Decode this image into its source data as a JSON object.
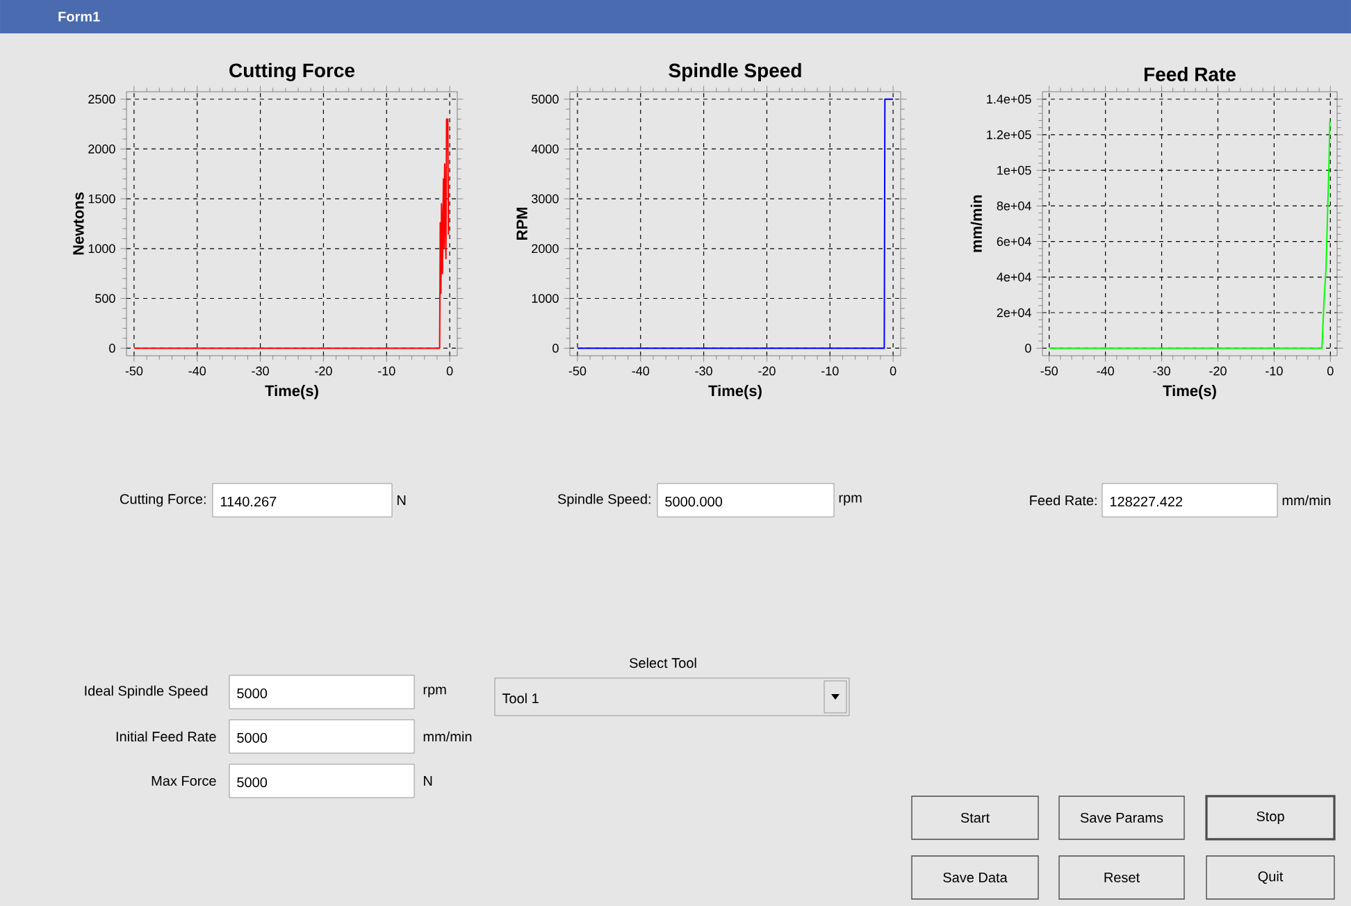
{
  "chart_data": [
    {
      "type": "line",
      "title": "Cutting Force",
      "xlabel": "Time(s)",
      "ylabel": "Newtons",
      "color": "#ff0000",
      "grid": true,
      "x": [
        -50,
        -1.6,
        -1.55,
        -1.5,
        -1.4,
        -1.3,
        -1.15,
        -1.0,
        -0.9,
        -0.8,
        -0.6,
        -0.5,
        -0.3,
        -0.2
      ],
      "values": [
        0,
        0,
        500,
        1260,
        550,
        1450,
        750,
        1700,
        1000,
        1850,
        900,
        2300,
        2300,
        1140
      ],
      "xlim": [
        -50,
        0
      ],
      "ylim": [
        0,
        2500
      ],
      "xticks": [
        -50,
        -40,
        -30,
        -20,
        -10,
        0
      ],
      "yticks": [
        0,
        500,
        1000,
        1500,
        2000,
        2500
      ]
    },
    {
      "type": "line",
      "title": "Spindle Speed",
      "xlabel": "Time(s)",
      "ylabel": "RPM",
      "color": "#0000ff",
      "grid": true,
      "x": [
        -50,
        -1.4,
        -1.3,
        0
      ],
      "values": [
        0,
        0,
        5000,
        5000
      ],
      "xlim": [
        -50,
        0
      ],
      "ylim": [
        0,
        5000
      ],
      "xticks": [
        -50,
        -40,
        -30,
        -20,
        -10,
        0
      ],
      "yticks": [
        0,
        1000,
        2000,
        3000,
        4000,
        5000
      ]
    },
    {
      "type": "line",
      "title": "Feed Rate",
      "xlabel": "Time(s)",
      "ylabel": "mm/min",
      "color": "#00ff00",
      "grid": true,
      "x": [
        -50,
        -1.5,
        -1.15,
        -0.77,
        -0.46,
        -0.23,
        -0.08
      ],
      "values": [
        0,
        0,
        25000,
        45000,
        80000,
        105000,
        128000
      ],
      "xlim": [
        -50,
        0
      ],
      "ylim": [
        0,
        140000
      ],
      "xticks": [
        -50,
        -40,
        -30,
        -20,
        -10,
        0
      ],
      "yticks": [
        0,
        {
          "value": 20000,
          "label": "2e+04"
        },
        {
          "value": 40000,
          "label": "4e+04"
        },
        {
          "value": 60000,
          "label": "6e+04"
        },
        {
          "value": 80000,
          "label": "8e+04"
        },
        {
          "value": 100000,
          "label": "1e+05"
        },
        {
          "value": 120000,
          "label": "1.2e+05"
        },
        {
          "value": 140000,
          "label": "1.4e+05"
        }
      ]
    },
    {
      "type": "other",
      "title": "Form1",
      "annotations": [
        "Cutting Force:",
        "1140.267",
        "N",
        "Spindle Speed:",
        "5000.000",
        "rpm",
        "Feed Rate:",
        "128227.422",
        "mm/min",
        "Select Tool",
        "Tool 1",
        "Ideal Spindle Speed",
        "5000",
        "rpm",
        "Initial Feed Rate",
        "5000",
        "mm/min",
        "Max Force",
        "5000",
        "N",
        "Start",
        "Save Params",
        "Stop",
        "Save Data",
        "Reset",
        "Quit"
      ]
    }
  ]
}
